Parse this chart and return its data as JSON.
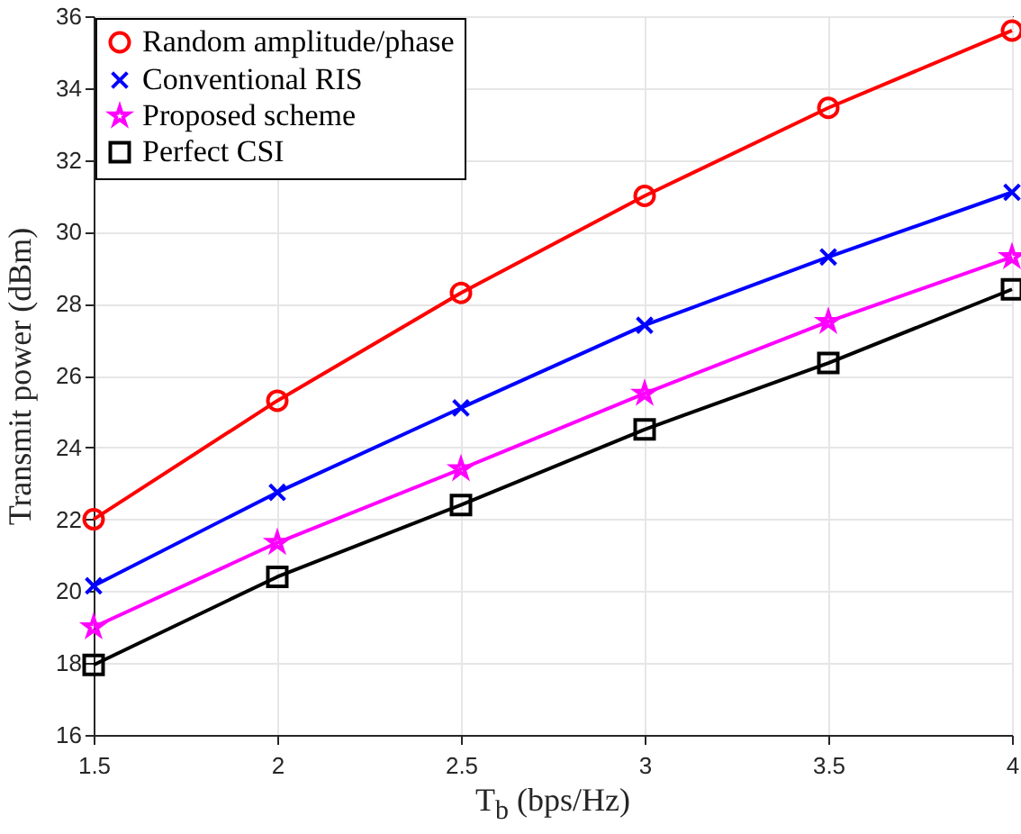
{
  "chart_data": {
    "type": "line",
    "xlabel": "T$_{b}$ (bps/Hz)",
    "ylabel": "Transmit power (dBm)",
    "x": [
      1.5,
      2,
      2.5,
      3,
      3.5,
      4
    ],
    "series": [
      {
        "name": "Random amplitude/phase",
        "color": "#ff0000",
        "marker": "circle",
        "values": [
          22.0,
          25.3,
          28.3,
          31.0,
          33.45,
          35.6
        ]
      },
      {
        "name": "Conventional RIS",
        "color": "#0000ff",
        "marker": "cross",
        "values": [
          20.15,
          22.75,
          25.1,
          27.4,
          29.3,
          31.1
        ]
      },
      {
        "name": "Proposed  scheme",
        "color": "#ff00ff",
        "marker": "star",
        "values": [
          19.0,
          21.35,
          23.4,
          25.5,
          27.5,
          29.3
        ]
      },
      {
        "name": "Perfect CSI",
        "color": "#000000",
        "marker": "square",
        "values": [
          17.95,
          20.4,
          22.4,
          24.5,
          26.35,
          28.4
        ]
      }
    ],
    "xlim": [
      1.5,
      4
    ],
    "xticks": [
      1.5,
      2,
      2.5,
      3,
      3.5,
      4
    ],
    "ylim": [
      16,
      36
    ],
    "yticks": [
      16,
      18,
      20,
      22,
      24,
      26,
      28,
      30,
      32,
      34,
      36
    ],
    "grid": true,
    "legend": "top left",
    "line_style": "solid"
  }
}
